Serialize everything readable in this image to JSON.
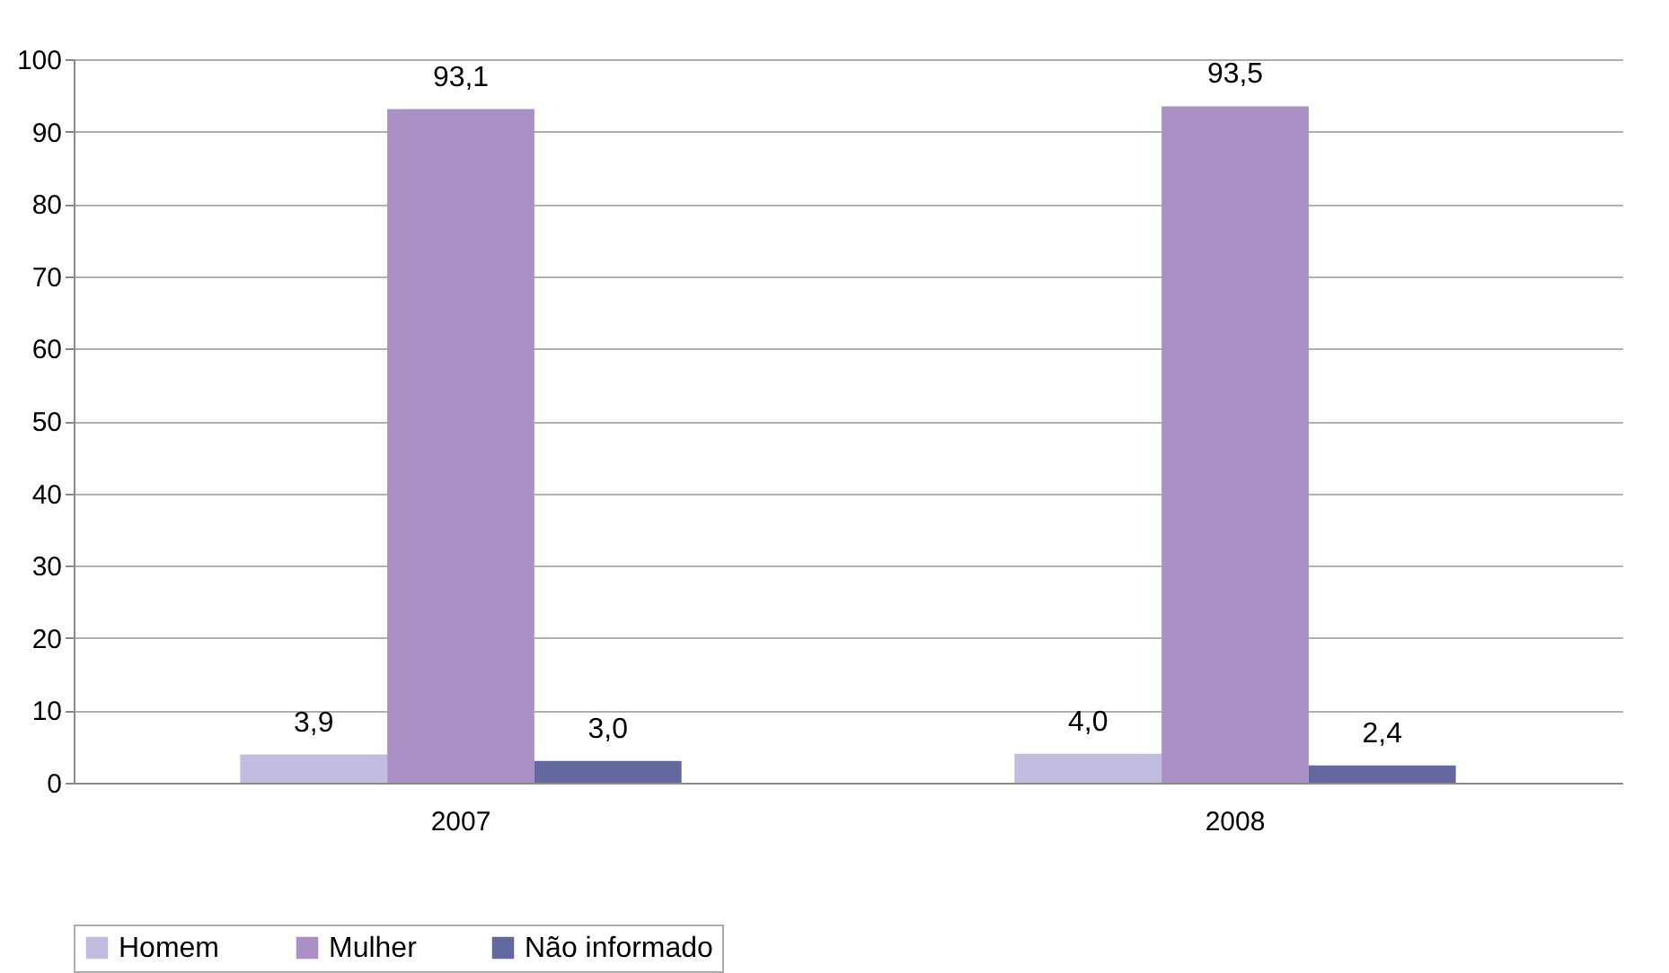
{
  "chart_data": {
    "type": "bar",
    "categories": [
      "2007",
      "2008"
    ],
    "series": [
      {
        "name": "Homem",
        "color": "#c0bde0",
        "values": [
          3.9,
          4.0
        ],
        "value_labels": [
          "3,9",
          "4,0"
        ]
      },
      {
        "name": "Mulher",
        "color": "#ab90c6",
        "values": [
          93.1,
          93.5
        ],
        "value_labels": [
          "93,1",
          "93,5"
        ]
      },
      {
        "name": "Não informado",
        "color": "#65679f",
        "values": [
          3.0,
          2.4
        ],
        "value_labels": [
          "3,0",
          "2,4"
        ]
      }
    ],
    "ylim": [
      0,
      100
    ],
    "yticks": [
      0,
      10,
      20,
      30,
      40,
      50,
      60,
      70,
      80,
      90,
      100
    ],
    "grid": "y",
    "legend": "bottom"
  }
}
